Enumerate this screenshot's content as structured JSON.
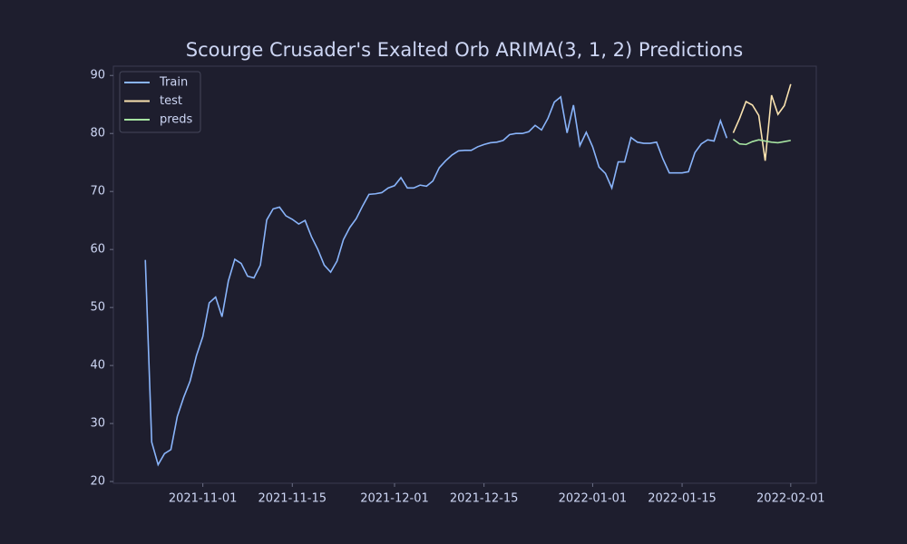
{
  "chart_data": {
    "type": "line",
    "title": "Scourge Crusader's Exalted Orb ARIMA(3, 1, 2) Predictions",
    "xlim": [
      "2021-10-18",
      "2022-02-05"
    ],
    "ylim": [
      19.7,
      91.6
    ],
    "xticks": [
      "2021-11-01",
      "2021-11-15",
      "2021-12-01",
      "2021-12-15",
      "2022-01-01",
      "2022-01-15",
      "2022-02-01"
    ],
    "yticks": [
      20,
      30,
      40,
      50,
      60,
      70,
      80,
      90
    ],
    "grid": false,
    "legend": "upper left",
    "series": [
      {
        "name": "Train",
        "color": "#89b4fa",
        "x": [
          "2021-10-23",
          "2021-10-24",
          "2021-10-25",
          "2021-10-26",
          "2021-10-27",
          "2021-10-28",
          "2021-10-29",
          "2021-10-30",
          "2021-10-31",
          "2021-11-01",
          "2021-11-02",
          "2021-11-03",
          "2021-11-04",
          "2021-11-05",
          "2021-11-06",
          "2021-11-07",
          "2021-11-08",
          "2021-11-09",
          "2021-11-10",
          "2021-11-11",
          "2021-11-12",
          "2021-11-13",
          "2021-11-14",
          "2021-11-15",
          "2021-11-16",
          "2021-11-17",
          "2021-11-18",
          "2021-11-19",
          "2021-11-20",
          "2021-11-21",
          "2021-11-22",
          "2021-11-23",
          "2021-11-24",
          "2021-11-25",
          "2021-11-26",
          "2021-11-27",
          "2021-11-28",
          "2021-11-29",
          "2021-11-30",
          "2021-12-01",
          "2021-12-02",
          "2021-12-03",
          "2021-12-04",
          "2021-12-05",
          "2021-12-06",
          "2021-12-07",
          "2021-12-08",
          "2021-12-09",
          "2021-12-10",
          "2021-12-11",
          "2021-12-12",
          "2021-12-13",
          "2021-12-14",
          "2021-12-15",
          "2021-12-16",
          "2021-12-17",
          "2021-12-18",
          "2021-12-19",
          "2021-12-20",
          "2021-12-21",
          "2021-12-22",
          "2021-12-23",
          "2021-12-24",
          "2021-12-25",
          "2021-12-26",
          "2021-12-27",
          "2021-12-28",
          "2021-12-29",
          "2021-12-30",
          "2021-12-31",
          "2022-01-01",
          "2022-01-02",
          "2022-01-03",
          "2022-01-04",
          "2022-01-05",
          "2022-01-06",
          "2022-01-07",
          "2022-01-08",
          "2022-01-09",
          "2022-01-10",
          "2022-01-11",
          "2022-01-12",
          "2022-01-13",
          "2022-01-14",
          "2022-01-15",
          "2022-01-16",
          "2022-01-17",
          "2022-01-18",
          "2022-01-19",
          "2022-01-20",
          "2022-01-21",
          "2022-01-22"
        ],
        "values": [
          58.2,
          26.8,
          22.9,
          24.8,
          25.5,
          31.2,
          34.5,
          37.3,
          41.7,
          45.0,
          50.8,
          51.8,
          48.4,
          54.6,
          58.3,
          57.6,
          55.4,
          55.1,
          57.3,
          65.1,
          67.0,
          67.3,
          65.8,
          65.2,
          64.4,
          65.0,
          62.2,
          60.0,
          57.3,
          56.1,
          58.0,
          61.7,
          63.8,
          65.3,
          67.5,
          69.5,
          69.6,
          69.8,
          70.6,
          71.0,
          72.4,
          70.6,
          70.6,
          71.1,
          70.9,
          71.8,
          74.1,
          75.3,
          76.3,
          77.0,
          77.1,
          77.1,
          77.7,
          78.1,
          78.4,
          78.5,
          78.8,
          79.8,
          80.0,
          80.0,
          80.3,
          81.4,
          80.6,
          82.6,
          85.4,
          86.3,
          80.1,
          84.9,
          77.9,
          80.2,
          77.7,
          74.2,
          73.1,
          70.6,
          75.1,
          75.1,
          79.3,
          78.5,
          78.3,
          78.3,
          78.5,
          75.6,
          73.2,
          73.2,
          73.2,
          73.4,
          76.7,
          78.2,
          78.9,
          78.7,
          82.2,
          79.2
        ]
      },
      {
        "name": "test",
        "color": "#f9e2af",
        "x": [
          "2022-01-23",
          "2022-01-24",
          "2022-01-25",
          "2022-01-26",
          "2022-01-27",
          "2022-01-28",
          "2022-01-29",
          "2022-01-30",
          "2022-01-31",
          "2022-02-01"
        ],
        "values": [
          80.1,
          82.6,
          85.5,
          84.9,
          83.1,
          75.3,
          86.6,
          83.3,
          84.8,
          88.5
        ]
      },
      {
        "name": "preds",
        "color": "#a6e3a1",
        "x": [
          "2022-01-23",
          "2022-01-24",
          "2022-01-25",
          "2022-01-26",
          "2022-01-27",
          "2022-01-28",
          "2022-01-29",
          "2022-01-30",
          "2022-01-31",
          "2022-02-01"
        ],
        "values": [
          79.0,
          78.2,
          78.1,
          78.6,
          78.9,
          78.7,
          78.5,
          78.4,
          78.6,
          78.8
        ]
      }
    ]
  }
}
